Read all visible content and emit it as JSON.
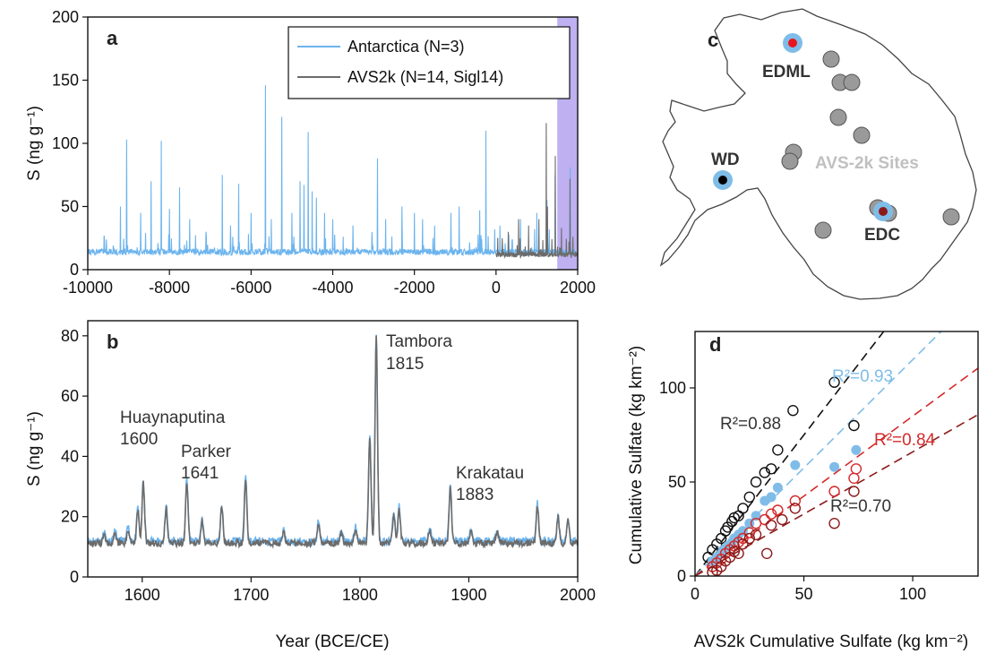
{
  "colors": {
    "antarctica": "#6cb4ee",
    "avs2k": "#6b6b6b",
    "highlight": "#b8a7f0",
    "black_fit": "#111111",
    "blue_fit": "#7fbde8",
    "red_fit": "#d42a2a",
    "darkred_fit": "#8b1b1b"
  },
  "chart_data": [
    {
      "panel": "a",
      "type": "line",
      "ylabel": "S (ng g⁻¹)",
      "xlim": [
        -10000,
        2000
      ],
      "ylim": [
        0,
        200
      ],
      "x_ticks": [
        -10000,
        -8000,
        -6000,
        -4000,
        -2000,
        0,
        2000
      ],
      "y_ticks": [
        0,
        50,
        100,
        150,
        200
      ],
      "legend_position": "top-right",
      "highlight_range": [
        1500,
        2000
      ],
      "series": [
        {
          "name": "Antarctica (N=3)",
          "baseline": 14,
          "x_range": [
            -10000,
            2000
          ],
          "peaks": [
            [
              -9600,
              27
            ],
            [
              -9200,
              50
            ],
            [
              -9050,
              103
            ],
            [
              -8700,
              45
            ],
            [
              -8450,
              70
            ],
            [
              -8200,
              102
            ],
            [
              -8000,
              48
            ],
            [
              -7750,
              65
            ],
            [
              -7500,
              40
            ],
            [
              -7100,
              30
            ],
            [
              -6700,
              75
            ],
            [
              -6500,
              35
            ],
            [
              -6300,
              68
            ],
            [
              -6000,
              45
            ],
            [
              -5650,
              146
            ],
            [
              -5500,
              40
            ],
            [
              -5250,
              121
            ],
            [
              -5000,
              45
            ],
            [
              -4800,
              70
            ],
            [
              -4700,
              67
            ],
            [
              -4600,
              109
            ],
            [
              -4500,
              62
            ],
            [
              -4400,
              57
            ],
            [
              -4200,
              45
            ],
            [
              -4000,
              40
            ],
            [
              -3500,
              35
            ],
            [
              -2900,
              88
            ],
            [
              -2700,
              40
            ],
            [
              -2300,
              50
            ],
            [
              -2000,
              45
            ],
            [
              -1800,
              40
            ],
            [
              -1500,
              35
            ],
            [
              -1100,
              45
            ],
            [
              -900,
              50
            ],
            [
              -400,
              47
            ],
            [
              -250,
              110
            ],
            [
              100,
              35
            ],
            [
              600,
              40
            ],
            [
              1000,
              45
            ],
            [
              1250,
              55
            ],
            [
              1450,
              75
            ],
            [
              1815,
              81
            ]
          ]
        },
        {
          "name": "AVS2k (N=14, Sigl14)",
          "baseline": 12,
          "x_range": [
            0,
            2000
          ],
          "peaks": [
            [
              300,
              30
            ],
            [
              550,
              40
            ],
            [
              800,
              35
            ],
            [
              1050,
              40
            ],
            [
              1230,
              116
            ],
            [
              1260,
              50
            ],
            [
              1450,
              90
            ],
            [
              1600,
              33
            ],
            [
              1815,
              72
            ]
          ]
        }
      ]
    },
    {
      "panel": "b",
      "type": "line",
      "xlabel": "Year (BCE/CE)",
      "ylabel": "S (ng g⁻¹)",
      "xlim": [
        1550,
        2000
      ],
      "ylim": [
        0,
        85
      ],
      "x_ticks": [
        1600,
        1700,
        1800,
        1900,
        2000
      ],
      "y_ticks": [
        0,
        20,
        40,
        60,
        80
      ],
      "baseline": 11.5,
      "peaks": [
        [
          1565,
          15
        ],
        [
          1575,
          15
        ],
        [
          1587,
          16
        ],
        [
          1596,
          23
        ],
        [
          1601,
          32
        ],
        [
          1622,
          23
        ],
        [
          1641,
          32
        ],
        [
          1655,
          19
        ],
        [
          1673,
          24
        ],
        [
          1695,
          33
        ],
        [
          1730,
          15
        ],
        [
          1762,
          18
        ],
        [
          1783,
          15
        ],
        [
          1796,
          16
        ],
        [
          1809,
          47
        ],
        [
          1815,
          80
        ],
        [
          1831,
          21
        ],
        [
          1836,
          23
        ],
        [
          1864,
          16
        ],
        [
          1883,
          30
        ],
        [
          1902,
          16
        ],
        [
          1926,
          15
        ],
        [
          1963,
          24
        ],
        [
          1982,
          20
        ],
        [
          1991,
          19
        ]
      ],
      "annotations": [
        {
          "label": "Huaynaputina",
          "year_label": "1600"
        },
        {
          "label": "Parker",
          "year_label": "1641"
        },
        {
          "label": "Tambora",
          "year_label": "1815"
        },
        {
          "label": "Krakatau",
          "year_label": "1883"
        }
      ]
    },
    {
      "panel": "d",
      "type": "scatter",
      "xlabel": "AVS2k Cumulative Sulfate (kg km⁻²)",
      "ylabel": "Cumulative Sulfate (kg km⁻²)",
      "xlim": [
        0,
        130
      ],
      "ylim": [
        0,
        130
      ],
      "x_ticks": [
        0,
        50,
        100
      ],
      "y_ticks": [
        0,
        50,
        100
      ],
      "series": [
        {
          "key": "black",
          "r2_label": "R²=0.88",
          "slope": 1.5,
          "marker": "open",
          "points": [
            [
              6,
              10
            ],
            [
              8,
              14
            ],
            [
              10,
              17
            ],
            [
              12,
              20
            ],
            [
              14,
              24
            ],
            [
              15,
              26
            ],
            [
              17,
              29
            ],
            [
              18,
              31
            ],
            [
              20,
              32
            ],
            [
              22,
              36
            ],
            [
              25,
              42
            ],
            [
              28,
              50
            ],
            [
              32,
              55
            ],
            [
              35,
              57
            ],
            [
              38,
              67
            ],
            [
              45,
              88
            ],
            [
              64,
              103
            ],
            [
              73,
              80
            ]
          ]
        },
        {
          "key": "blue",
          "r2_label": "R²=0.93",
          "slope": 1.15,
          "marker": "filled",
          "points": [
            [
              8,
              8
            ],
            [
              10,
              10
            ],
            [
              12,
              12
            ],
            [
              13,
              14
            ],
            [
              15,
              16
            ],
            [
              17,
              18
            ],
            [
              18,
              20
            ],
            [
              20,
              22
            ],
            [
              22,
              24
            ],
            [
              25,
              28
            ],
            [
              28,
              32
            ],
            [
              32,
              40
            ],
            [
              35,
              42
            ],
            [
              38,
              47
            ],
            [
              46,
              59
            ],
            [
              64,
              58
            ],
            [
              74,
              67
            ]
          ]
        },
        {
          "key": "red",
          "r2_label": "R²=0.84",
          "slope": 0.85,
          "marker": "open",
          "points": [
            [
              8,
              5
            ],
            [
              10,
              7
            ],
            [
              12,
              9
            ],
            [
              14,
              12
            ],
            [
              16,
              14
            ],
            [
              18,
              16
            ],
            [
              20,
              18
            ],
            [
              22,
              20
            ],
            [
              25,
              23
            ],
            [
              28,
              28
            ],
            [
              32,
              30
            ],
            [
              35,
              33
            ],
            [
              38,
              35
            ],
            [
              46,
              40
            ],
            [
              64,
              45
            ],
            [
              73,
              52
            ],
            [
              74,
              57
            ]
          ]
        },
        {
          "key": "darkred",
          "r2_label": "R²=0.70",
          "slope": 0.66,
          "marker": "open",
          "points": [
            [
              8,
              2
            ],
            [
              10,
              3
            ],
            [
              12,
              5
            ],
            [
              14,
              8
            ],
            [
              16,
              10
            ],
            [
              18,
              13
            ],
            [
              20,
              12
            ],
            [
              22,
              17
            ],
            [
              25,
              20
            ],
            [
              28,
              22
            ],
            [
              33,
              12
            ],
            [
              35,
              27
            ],
            [
              40,
              30
            ],
            [
              46,
              36
            ],
            [
              64,
              28
            ],
            [
              73,
              45
            ]
          ]
        }
      ]
    }
  ],
  "panel_a_label": "a",
  "panel_b_label": "b",
  "panel_c_label": "c",
  "panel_d_label": "d",
  "map": {
    "labels": {
      "edml": "EDML",
      "wd": "WD",
      "edc": "EDC",
      "avs_sites": "AVS-2k Sites"
    },
    "core_sites": [
      {
        "name": "EDML",
        "dot_color": "#e8141e"
      },
      {
        "name": "WD",
        "dot_color": "#000000"
      },
      {
        "name": "EDC",
        "dot_color": "#8b1b1b"
      }
    ],
    "avs_site_count": 11
  }
}
